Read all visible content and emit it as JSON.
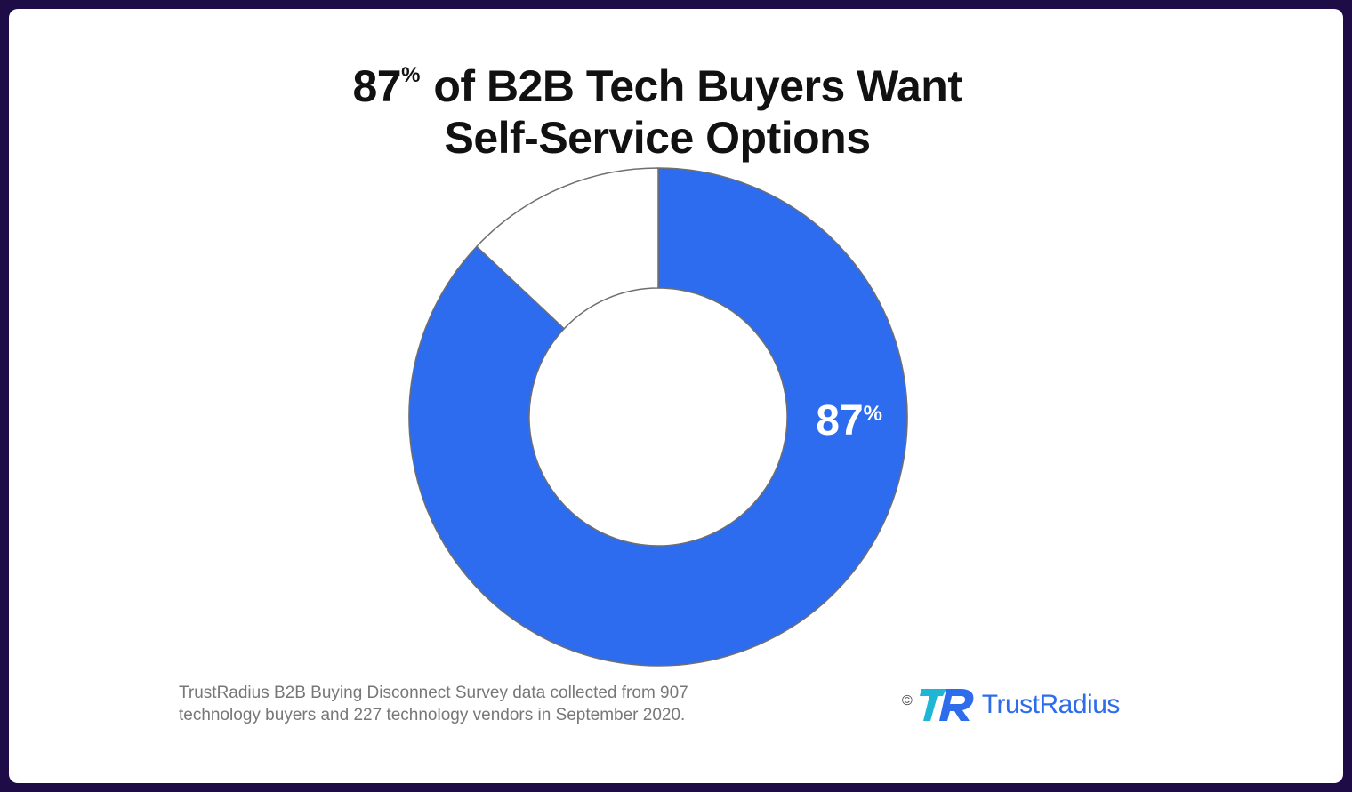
{
  "title": {
    "pct_number": "87",
    "pct_symbol": "%",
    "rest_line1": "of B2B Tech Buyers Want",
    "line2": "Self-Service Options"
  },
  "chart_data": {
    "type": "pie",
    "variant": "donut",
    "slices": [
      {
        "label": "87%",
        "value": 87,
        "color": "#2d6cee"
      },
      {
        "value": 13,
        "color": "#ffffff"
      }
    ]
  },
  "slice_label": {
    "number": "87",
    "symbol": "%"
  },
  "footnote": {
    "line1": "TrustRadius B2B Buying Disconnect Survey data collected from 907",
    "line2": "technology buyers and 227 technology vendors in September 2020."
  },
  "brand": {
    "copyright": "©",
    "logo_text": "TrustRadius",
    "color": "#2d6cea"
  }
}
